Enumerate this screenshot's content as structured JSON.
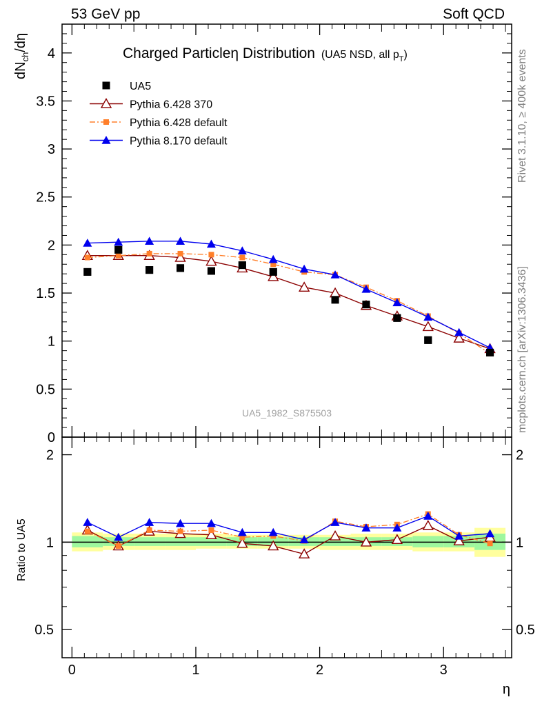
{
  "header": {
    "left": "53 GeV pp",
    "right": "Soft QCD"
  },
  "side": {
    "rivet": "Rivet 3.1.10, ≥ 400k events",
    "mcplots": "mcplots.cern.ch [arXiv:1306.3436]"
  },
  "chart_data": [
    {
      "type": "scatter",
      "title_main": "Charged Particleη Distribution",
      "title_sub": "(UA5 NSD, all p",
      "title_sub_subscript": "T",
      "title_sub_close": ")",
      "ylabel": "dN",
      "ylabel_subscript": "ch",
      "ylabel_tail": "/dη",
      "watermark": "UA5_1982_S875503",
      "ylim": [
        0,
        4.3
      ],
      "xlim": [
        -0.08,
        3.55
      ],
      "yticks": [
        "0",
        "0.5",
        "1",
        "1.5",
        "2",
        "2.5",
        "3",
        "3.5",
        "4"
      ],
      "legend": [
        {
          "label": "UA5",
          "color": "#000000",
          "marker": "square-filled",
          "line": "none"
        },
        {
          "label": "Pythia 6.428 370",
          "color": "#8b0000",
          "marker": "triangle-open",
          "line": "solid"
        },
        {
          "label": "Pythia 6.428 default",
          "color": "#ff7f2a",
          "marker": "square-filled",
          "line": "dashdot"
        },
        {
          "label": "Pythia 8.170 default",
          "color": "#0000ee",
          "marker": "triangle-filled",
          "line": "solid"
        }
      ],
      "series": [
        {
          "name": "UA5",
          "color": "#000000",
          "x": [
            0.125,
            0.375,
            0.625,
            0.875,
            1.125,
            1.375,
            1.625,
            1.875,
            2.125,
            2.375,
            2.625,
            2.875,
            3.125,
            3.375
          ],
          "y": [
            1.72,
            1.95,
            1.74,
            1.76,
            1.73,
            1.79,
            1.72,
            null,
            1.43,
            1.38,
            1.24,
            1.01,
            null,
            0.88
          ]
        },
        {
          "name": "Pythia 6.428 370",
          "color": "#8b0000",
          "x": [
            0.125,
            0.375,
            0.625,
            0.875,
            1.125,
            1.375,
            1.625,
            1.875,
            2.125,
            2.375,
            2.625,
            2.875,
            3.125,
            3.375
          ],
          "y": [
            1.89,
            1.89,
            1.89,
            1.87,
            1.83,
            1.76,
            1.67,
            1.56,
            1.5,
            1.37,
            1.26,
            1.15,
            1.03,
            0.92
          ]
        },
        {
          "name": "Pythia 6.428 default",
          "color": "#ff7f2a",
          "x": [
            0.125,
            0.375,
            0.625,
            0.875,
            1.125,
            1.375,
            1.625,
            1.875,
            2.125,
            2.375,
            2.625,
            2.875,
            3.125,
            3.375
          ],
          "y": [
            1.87,
            1.89,
            1.91,
            1.91,
            1.9,
            1.87,
            1.8,
            1.72,
            1.69,
            1.56,
            1.42,
            1.26,
            1.08,
            0.87
          ]
        },
        {
          "name": "Pythia 8.170 default",
          "color": "#0000ee",
          "x": [
            0.125,
            0.375,
            0.625,
            0.875,
            1.125,
            1.375,
            1.625,
            1.875,
            2.125,
            2.375,
            2.625,
            2.875,
            3.125,
            3.375
          ],
          "y": [
            2.02,
            2.03,
            2.04,
            2.04,
            2.01,
            1.94,
            1.85,
            1.75,
            1.69,
            1.54,
            1.4,
            1.25,
            1.09,
            0.93
          ]
        }
      ]
    },
    {
      "type": "line",
      "ylabel": "Ratio to UA5",
      "xlabel": "η",
      "ylim": [
        0.4,
        2.3
      ],
      "log_y": true,
      "xticks": [
        "0",
        "1",
        "2",
        "3"
      ],
      "yticks": [
        "0.5",
        "1",
        "2"
      ],
      "bands": {
        "x_edges": [
          0,
          0.25,
          0.5,
          0.75,
          1.0,
          1.25,
          1.5,
          1.75,
          2.0,
          2.25,
          2.5,
          2.75,
          3.0,
          3.25,
          3.5
        ],
        "yellow": [
          [
            0.93,
            1.08
          ],
          [
            0.94,
            1.07
          ],
          [
            0.94,
            1.07
          ],
          [
            0.94,
            1.07
          ],
          [
            0.95,
            1.07
          ],
          [
            0.95,
            1.06
          ],
          [
            0.95,
            1.06
          ],
          [
            0.95,
            1.06
          ],
          [
            0.94,
            1.06
          ],
          [
            0.94,
            1.07
          ],
          [
            0.94,
            1.07
          ],
          [
            0.93,
            1.08
          ],
          [
            0.93,
            1.08
          ],
          [
            0.89,
            1.12
          ]
        ],
        "green": [
          [
            0.96,
            1.05
          ],
          [
            0.97,
            1.04
          ],
          [
            0.97,
            1.04
          ],
          [
            0.97,
            1.04
          ],
          [
            0.97,
            1.04
          ],
          [
            0.97,
            1.04
          ],
          [
            0.97,
            1.04
          ],
          [
            0.97,
            1.04
          ],
          [
            0.97,
            1.04
          ],
          [
            0.97,
            1.04
          ],
          [
            0.97,
            1.04
          ],
          [
            0.96,
            1.05
          ],
          [
            0.96,
            1.05
          ],
          [
            0.94,
            1.07
          ]
        ],
        "yellow_color": "#ffff9e",
        "green_color": "#9ef79e"
      },
      "series": [
        {
          "name": "Pythia 6.428 370",
          "color": "#8b0000",
          "x": [
            0.125,
            0.375,
            0.625,
            0.875,
            1.125,
            1.375,
            1.625,
            1.875,
            2.125,
            2.375,
            2.625,
            2.875,
            3.125,
            3.375
          ],
          "y": [
            1.1,
            0.97,
            1.09,
            1.07,
            1.06,
            0.99,
            0.97,
            0.91,
            1.05,
            1.0,
            1.02,
            1.14,
            1.01,
            1.04
          ]
        },
        {
          "name": "Pythia 6.428 default",
          "color": "#ff7f2a",
          "x": [
            0.125,
            0.375,
            0.625,
            0.875,
            1.125,
            1.375,
            1.625,
            1.875,
            2.125,
            2.375,
            2.625,
            2.875,
            3.125,
            3.375
          ],
          "y": [
            1.09,
            0.97,
            1.1,
            1.09,
            1.1,
            1.04,
            1.05,
            1.01,
            1.18,
            1.13,
            1.15,
            1.25,
            1.06,
            0.99
          ]
        },
        {
          "name": "Pythia 8.170 default",
          "color": "#0000ee",
          "x": [
            0.125,
            0.375,
            0.625,
            0.875,
            1.125,
            1.375,
            1.625,
            1.875,
            2.125,
            2.375,
            2.625,
            2.875,
            3.125,
            3.375
          ],
          "y": [
            1.17,
            1.04,
            1.17,
            1.16,
            1.16,
            1.08,
            1.08,
            1.02,
            1.17,
            1.12,
            1.12,
            1.23,
            1.05,
            1.07
          ]
        }
      ]
    }
  ]
}
